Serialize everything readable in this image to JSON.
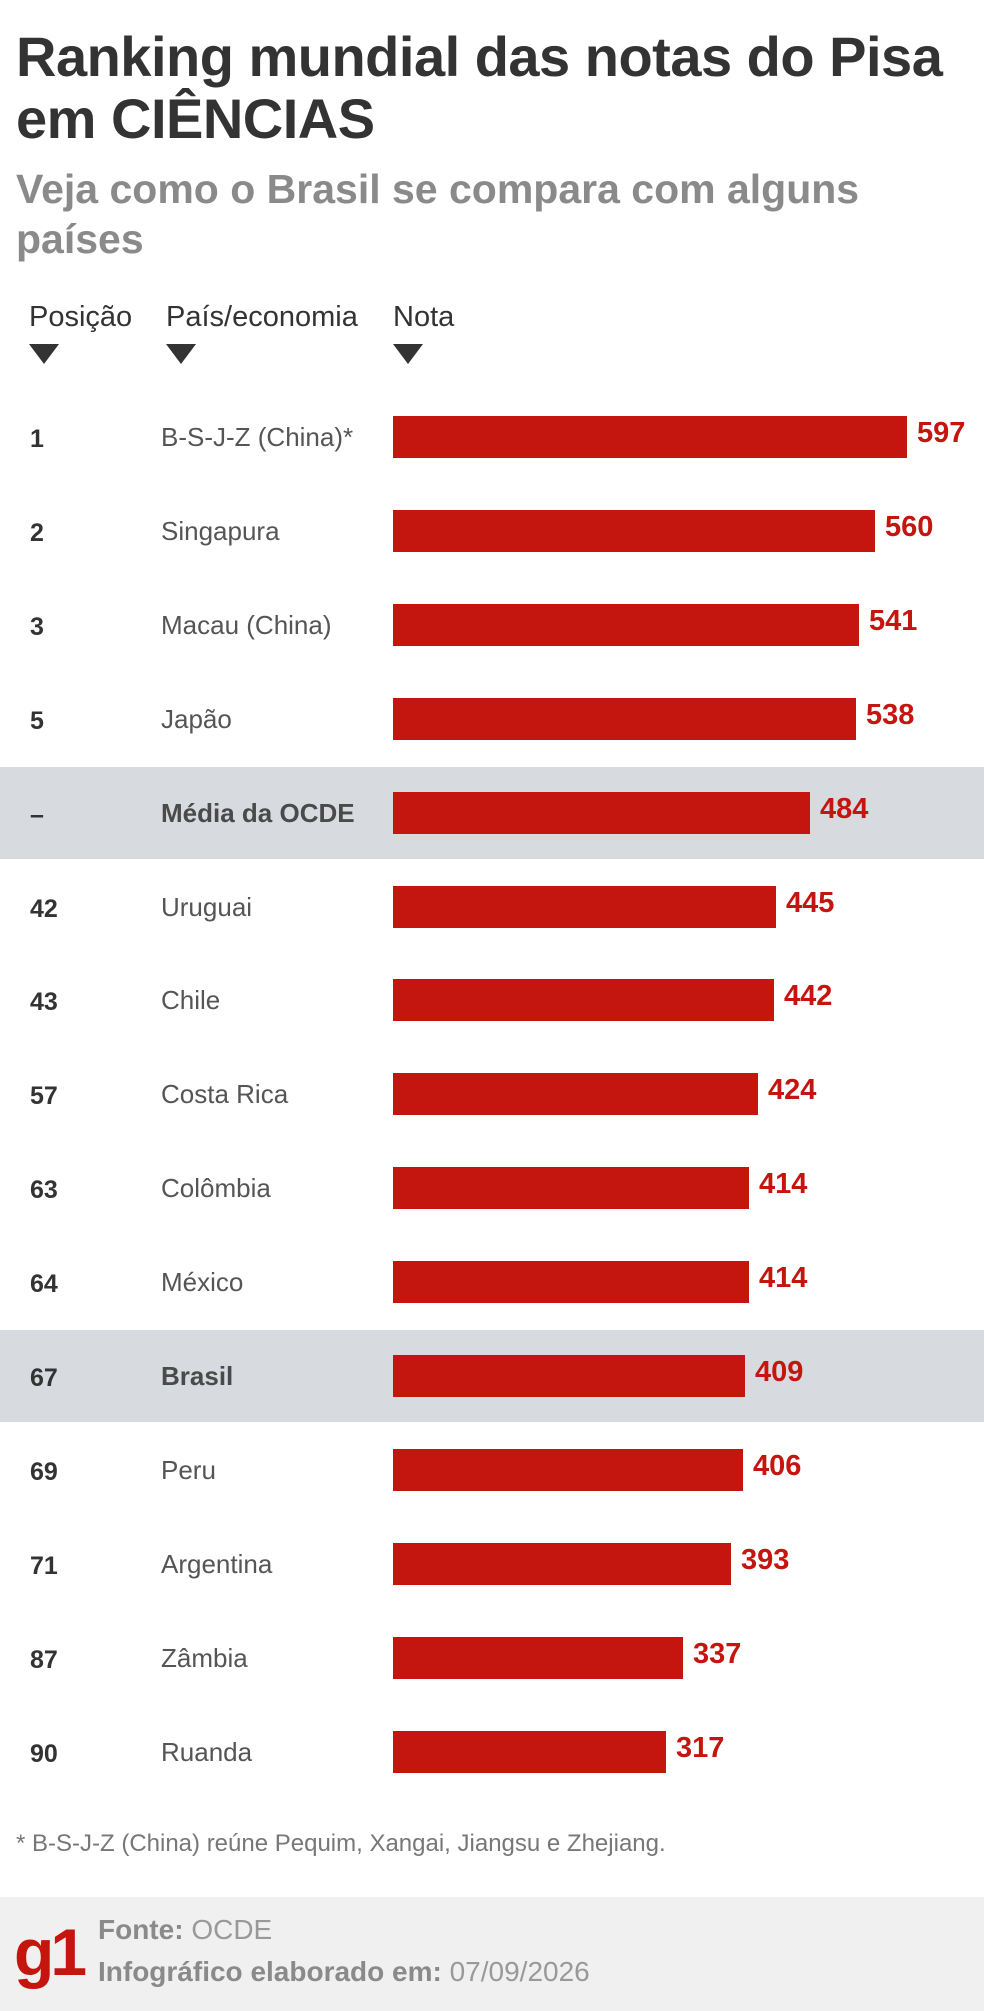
{
  "header": {
    "title": "Ranking mundial das notas do Pisa em CIÊNCIAS",
    "subtitle": "Veja como o Brasil se compara com alguns países"
  },
  "columns": {
    "position": "Posição",
    "country": "País/economia",
    "score": "Nota"
  },
  "colors": {
    "bar": "#c4150f",
    "highlight_row": "#d7dbdf",
    "title": "#333333",
    "subtitle": "#8a8a8a"
  },
  "chart_data": {
    "type": "bar",
    "orientation": "horizontal",
    "title": "Ranking mundial das notas do Pisa em CIÊNCIAS",
    "subtitle": "Veja como o Brasil se compara com alguns países",
    "xlim": [
      0,
      597
    ],
    "rows": [
      {
        "rank": "1",
        "country": "B-S-J-Z (China)*",
        "value": 597,
        "highlight": false
      },
      {
        "rank": "2",
        "country": "Singapura",
        "value": 560,
        "highlight": false
      },
      {
        "rank": "3",
        "country": "Macau (China)",
        "value": 541,
        "highlight": false
      },
      {
        "rank": "5",
        "country": "Japão",
        "value": 538,
        "highlight": false
      },
      {
        "rank": "–",
        "country": "Média da OCDE",
        "value": 484,
        "highlight": true
      },
      {
        "rank": "42",
        "country": "Uruguai",
        "value": 445,
        "highlight": false
      },
      {
        "rank": "43",
        "country": "Chile",
        "value": 442,
        "highlight": false
      },
      {
        "rank": "57",
        "country": "Costa Rica",
        "value": 424,
        "highlight": false
      },
      {
        "rank": "63",
        "country": "Colômbia",
        "value": 414,
        "highlight": false
      },
      {
        "rank": "64",
        "country": "México",
        "value": 414,
        "highlight": false
      },
      {
        "rank": "67",
        "country": "Brasil",
        "value": 409,
        "highlight": true
      },
      {
        "rank": "69",
        "country": "Peru",
        "value": 406,
        "highlight": false
      },
      {
        "rank": "71",
        "country": "Argentina",
        "value": 393,
        "highlight": false
      },
      {
        "rank": "87",
        "country": "Zâmbia",
        "value": 337,
        "highlight": false
      },
      {
        "rank": "90",
        "country": "Ruanda",
        "value": 317,
        "highlight": false
      }
    ]
  },
  "footnote": "* B-S-J-Z (China) reúne Pequim, Xangai, Jiangsu e Zhejiang.",
  "footer": {
    "logo": "g1",
    "source_label": "Fonte:",
    "source_value": "OCDE",
    "date_label": "Infográfico elaborado em:",
    "date_value": "07/09/2026"
  }
}
